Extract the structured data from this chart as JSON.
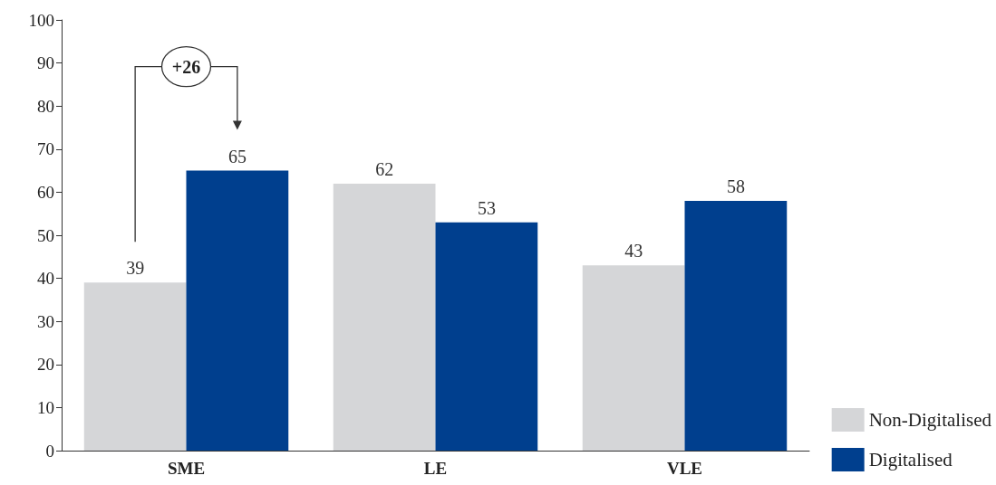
{
  "chart_data": {
    "type": "bar",
    "categories": [
      "SME",
      "LE",
      "VLE"
    ],
    "series": [
      {
        "name": "Non-Digitalised",
        "color": "#d5d6d8",
        "values": [
          39,
          62,
          43
        ]
      },
      {
        "name": "Digitalised",
        "color": "#003f8e",
        "values": [
          65,
          53,
          58
        ]
      }
    ],
    "ylim": [
      0,
      100
    ],
    "yticks": [
      0,
      10,
      20,
      30,
      40,
      50,
      60,
      70,
      80,
      90,
      100
    ],
    "grid": false,
    "legend": "bottom right",
    "data_labels": true,
    "annotations": [
      "+26"
    ]
  }
}
